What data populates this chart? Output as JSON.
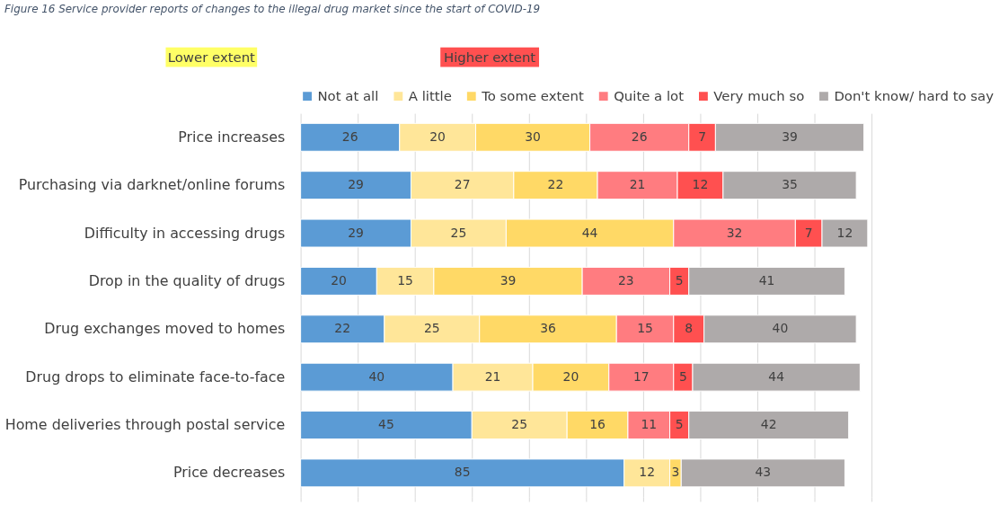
{
  "chart_data": {
    "type": "bar",
    "orientation": "horizontal",
    "stacked": true,
    "title": "Figure 16 Service provider reports of changes to the illegal drug market since the start of COVID-19",
    "categories": [
      "Price increases",
      "Purchasing via darknet/online forums",
      "Difficulty in accessing drugs",
      "Drop in the quality of drugs",
      "Drug exchanges moved to homes",
      "Drug drops to eliminate face-to-face",
      "Home deliveries through postal service",
      "Price decreases"
    ],
    "series": [
      {
        "name": "Not at all",
        "color": "#5b9bd5",
        "values": [
          26,
          29,
          29,
          20,
          22,
          40,
          45,
          85
        ]
      },
      {
        "name": "A little",
        "color": "#ffe699",
        "values": [
          20,
          27,
          25,
          15,
          25,
          21,
          25,
          12
        ]
      },
      {
        "name": "To some extent",
        "color": "#ffd966",
        "values": [
          30,
          22,
          44,
          39,
          36,
          20,
          16,
          3
        ]
      },
      {
        "name": "Quite a lot",
        "color": "#ff7c80",
        "values": [
          26,
          21,
          32,
          23,
          15,
          17,
          11,
          null
        ]
      },
      {
        "name": "Very much so",
        "color": "#ff5050",
        "values": [
          7,
          12,
          7,
          5,
          8,
          5,
          5,
          null
        ]
      },
      {
        "name": "Don't know/ hard to say",
        "color": "#aeaaaa",
        "values": [
          39,
          35,
          12,
          41,
          40,
          44,
          42,
          43
        ]
      }
    ],
    "xlim": [
      0,
      150
    ],
    "xticks": [
      {
        "value": 0,
        "label": null
      },
      {
        "value": 15,
        "label": null
      },
      {
        "value": 30,
        "label": null
      },
      {
        "value": 45,
        "label": null
      },
      {
        "value": 60,
        "label": null
      },
      {
        "value": 75,
        "label": null
      },
      {
        "value": 90,
        "label": null
      },
      {
        "value": 105,
        "label": null
      },
      {
        "value": 120,
        "label": null
      },
      {
        "value": 135,
        "label": null
      },
      {
        "value": 150,
        "label": null
      }
    ],
    "tick_labels": "y",
    "grid": "x",
    "legend": "top",
    "data_labels": true,
    "annotations": [
      "Lower extent",
      "Higher extent"
    ]
  }
}
